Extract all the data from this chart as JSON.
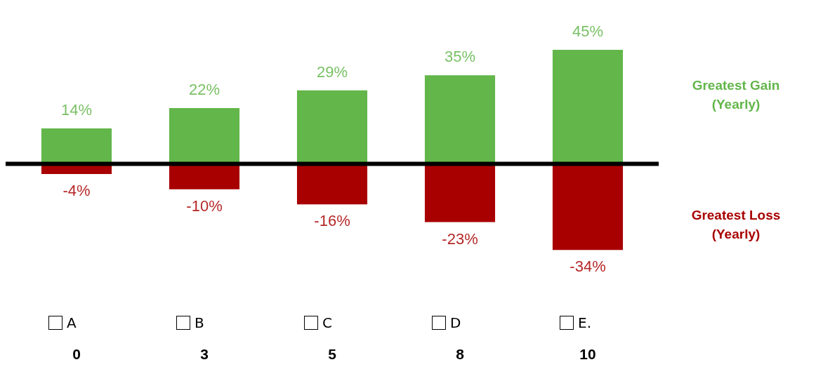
{
  "chart_data": {
    "type": "bar",
    "categories": [
      "A",
      "B",
      "C",
      "D",
      "E."
    ],
    "series": [
      {
        "name": "Greatest Gain (Yearly)",
        "color": "#62b64a",
        "values": [
          14,
          22,
          29,
          35,
          45
        ],
        "value_labels": [
          "14%",
          "22%",
          "29%",
          "35%",
          "45%"
        ]
      },
      {
        "name": "Greatest Loss (Yearly)",
        "color": "#a80000",
        "values": [
          -4,
          -10,
          -16,
          -23,
          -34
        ],
        "value_labels": [
          "-4%",
          "-10%",
          "-16%",
          "-23%",
          "-34%"
        ]
      }
    ],
    "stacked": true,
    "legend": "right",
    "tick_labels": "x",
    "ref_lines": [
      {
        "axis": "y",
        "value": 0,
        "color": "#000000"
      }
    ],
    "annotations": [
      "0",
      "3",
      "5",
      "8",
      "10"
    ]
  }
}
